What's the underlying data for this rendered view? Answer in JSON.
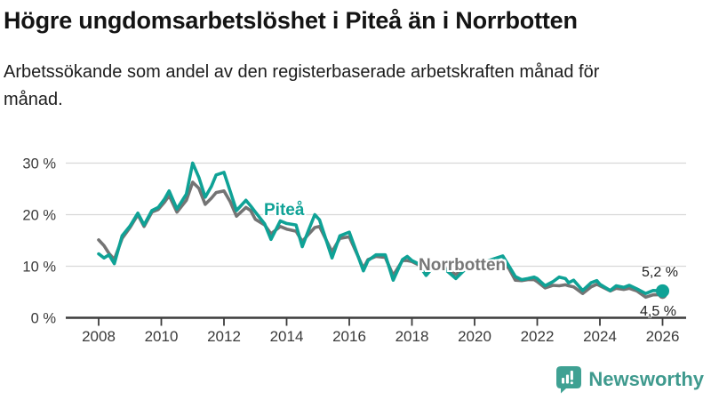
{
  "header": {
    "title": "Högre ungdomsarbetslöshet i Piteå än i Norrbotten",
    "subtitle": "Arbetssökande som andel av den registerbaserade arbetskraften månad för månad."
  },
  "chart_data": {
    "type": "line",
    "title": "Högre ungdomsarbetslöshet i Piteå än i Norrbotten",
    "xlabel": "",
    "ylabel": "",
    "unit": "%",
    "x_unit": "decimal_year",
    "xlim": [
      2007.9,
      2026.7
    ],
    "ylim": [
      0,
      30
    ],
    "grid": "horizontal",
    "x": [
      2008.0,
      2008.17,
      2008.33,
      2008.5,
      2008.75,
      2009.0,
      2009.25,
      2009.45,
      2009.7,
      2009.9,
      2010.1,
      2010.25,
      2010.5,
      2010.8,
      2011.0,
      2011.2,
      2011.4,
      2011.6,
      2011.75,
      2012.0,
      2012.2,
      2012.4,
      2012.7,
      2012.85,
      2013.0,
      2013.3,
      2013.5,
      2013.8,
      2014.0,
      2014.3,
      2014.5,
      2014.7,
      2014.9,
      2015.05,
      2015.45,
      2015.7,
      2016.0,
      2016.45,
      2016.6,
      2016.85,
      2017.15,
      2017.4,
      2017.7,
      2017.85,
      2018.0,
      2018.2,
      2018.45,
      2018.7,
      2019.0,
      2019.4,
      2019.7,
      2020.0,
      2020.4,
      2020.9,
      2021.1,
      2021.3,
      2021.5,
      2021.7,
      2021.9,
      2022.0,
      2022.25,
      2022.5,
      2022.7,
      2022.9,
      2023.0,
      2023.16,
      2023.45,
      2023.72,
      2023.9,
      2024.0,
      2024.33,
      2024.52,
      2024.76,
      2024.94,
      2025.18,
      2025.46,
      2025.7,
      2026.0
    ],
    "series": [
      {
        "name": "Piteå",
        "color": "#0FA296",
        "values": [
          12.4,
          11.6,
          12.2,
          10.5,
          15.9,
          17.8,
          20.3,
          18.0,
          20.8,
          21.4,
          23.0,
          24.6,
          21.1,
          24.0,
          30.0,
          27.2,
          23.4,
          25.5,
          27.7,
          28.2,
          24.5,
          20.8,
          22.8,
          21.7,
          20.5,
          18.2,
          15.2,
          18.8,
          18.3,
          18.0,
          13.8,
          17.0,
          20.0,
          19.0,
          11.6,
          15.9,
          16.6,
          9.1,
          11.1,
          12.2,
          12.2,
          7.3,
          11.3,
          11.9,
          11.1,
          10.5,
          8.2,
          10.0,
          9.7,
          7.6,
          9.4,
          9.9,
          11.0,
          12.0,
          10.0,
          8.0,
          7.4,
          7.6,
          7.9,
          7.6,
          6.2,
          7.0,
          7.9,
          7.6,
          6.8,
          7.3,
          5.3,
          6.8,
          7.2,
          6.5,
          5.3,
          6.2,
          5.9,
          6.3,
          5.6,
          4.7,
          5.3,
          5.2
        ]
      },
      {
        "name": "Norrbotten",
        "color": "#747474",
        "values": [
          15.1,
          14.0,
          12.5,
          11.3,
          15.4,
          17.5,
          20.0,
          17.7,
          20.5,
          21.0,
          22.4,
          23.7,
          20.5,
          22.8,
          26.3,
          25.1,
          22.0,
          23.2,
          24.3,
          24.6,
          22.5,
          19.7,
          21.4,
          20.8,
          19.1,
          18.0,
          16.3,
          17.7,
          17.2,
          16.8,
          14.8,
          16.2,
          17.5,
          17.7,
          12.8,
          15.4,
          15.7,
          9.6,
          11.3,
          11.9,
          11.7,
          8.2,
          11.1,
          11.1,
          10.9,
          10.3,
          8.8,
          10.0,
          9.9,
          8.4,
          9.6,
          10.1,
          10.8,
          11.0,
          9.5,
          7.3,
          7.2,
          7.4,
          7.4,
          7.0,
          5.8,
          6.3,
          6.2,
          6.4,
          6.2,
          6.0,
          4.7,
          6.0,
          6.5,
          6.2,
          5.2,
          5.7,
          5.5,
          5.7,
          5.2,
          4.0,
          4.45,
          4.5
        ]
      }
    ],
    "yticks": [
      {
        "v": 30,
        "label": "30 %"
      },
      {
        "v": 20,
        "label": "20 %"
      },
      {
        "v": 10,
        "label": "10 %"
      },
      {
        "v": 0,
        "label": "0 %"
      }
    ],
    "xticks": [
      {
        "v": 2008,
        "label": "2008"
      },
      {
        "v": 2010,
        "label": "2010"
      },
      {
        "v": 2012,
        "label": "2012"
      },
      {
        "v": 2014,
        "label": "2014"
      },
      {
        "v": 2016,
        "label": "2016"
      },
      {
        "v": 2018,
        "label": "2018"
      },
      {
        "v": 2020,
        "label": "2020"
      },
      {
        "v": 2022,
        "label": "2022"
      },
      {
        "v": 2024,
        "label": "2024"
      },
      {
        "v": 2026,
        "label": "2026"
      }
    ],
    "end_labels": [
      {
        "series": "Piteå",
        "text": "5,2 %"
      },
      {
        "series": "Norrbotten",
        "text": "4,5 %"
      }
    ],
    "legend_position": "inline-annotations"
  },
  "colors": {
    "pitea_line": "#0FA296",
    "norrbotten_line": "#747474",
    "grid": "#d8d8d8",
    "axis": "#3c3c3c",
    "tick_text": "#3a3a3a",
    "brand_teal": "#3f9a8e"
  },
  "footer": {
    "brand": "Newsworthy"
  }
}
